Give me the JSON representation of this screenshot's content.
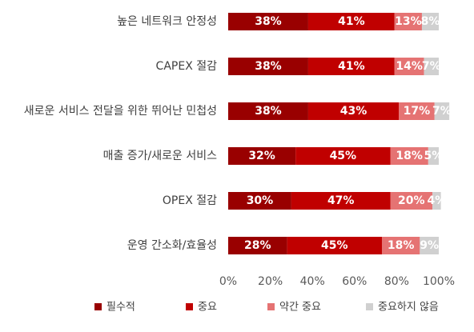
{
  "chart_data": {
    "type": "bar",
    "orientation": "horizontal",
    "stacked": true,
    "categories": [
      "높은 네트워크 안정성",
      "CAPEX 절감",
      "새로운 서비스 전달을 위한 뛰어난 민첩성",
      "매출 증가/새로운 서비스",
      "OPEX 절감",
      "운영 간소화/효율성"
    ],
    "series": [
      {
        "name": "필수적",
        "color": "#990000",
        "values": [
          38,
          38,
          38,
          32,
          30,
          28
        ]
      },
      {
        "name": "중요",
        "color": "#c00000",
        "values": [
          41,
          41,
          43,
          45,
          47,
          45
        ]
      },
      {
        "name": "약간 중요",
        "color": "#e57373",
        "values": [
          13,
          14,
          17,
          18,
          20,
          18
        ]
      },
      {
        "name": "중요하지 않음",
        "color": "#d0d0d0",
        "values": [
          8,
          7,
          7,
          5,
          4,
          9
        ]
      }
    ],
    "value_format": "{v}%",
    "xlim": [
      0,
      100
    ],
    "xticks": [
      "0%",
      "20%",
      "40%",
      "60%",
      "80%",
      "100%"
    ],
    "grid": false,
    "legend_position": "bottom",
    "title": "",
    "xlabel": "",
    "ylabel": ""
  }
}
